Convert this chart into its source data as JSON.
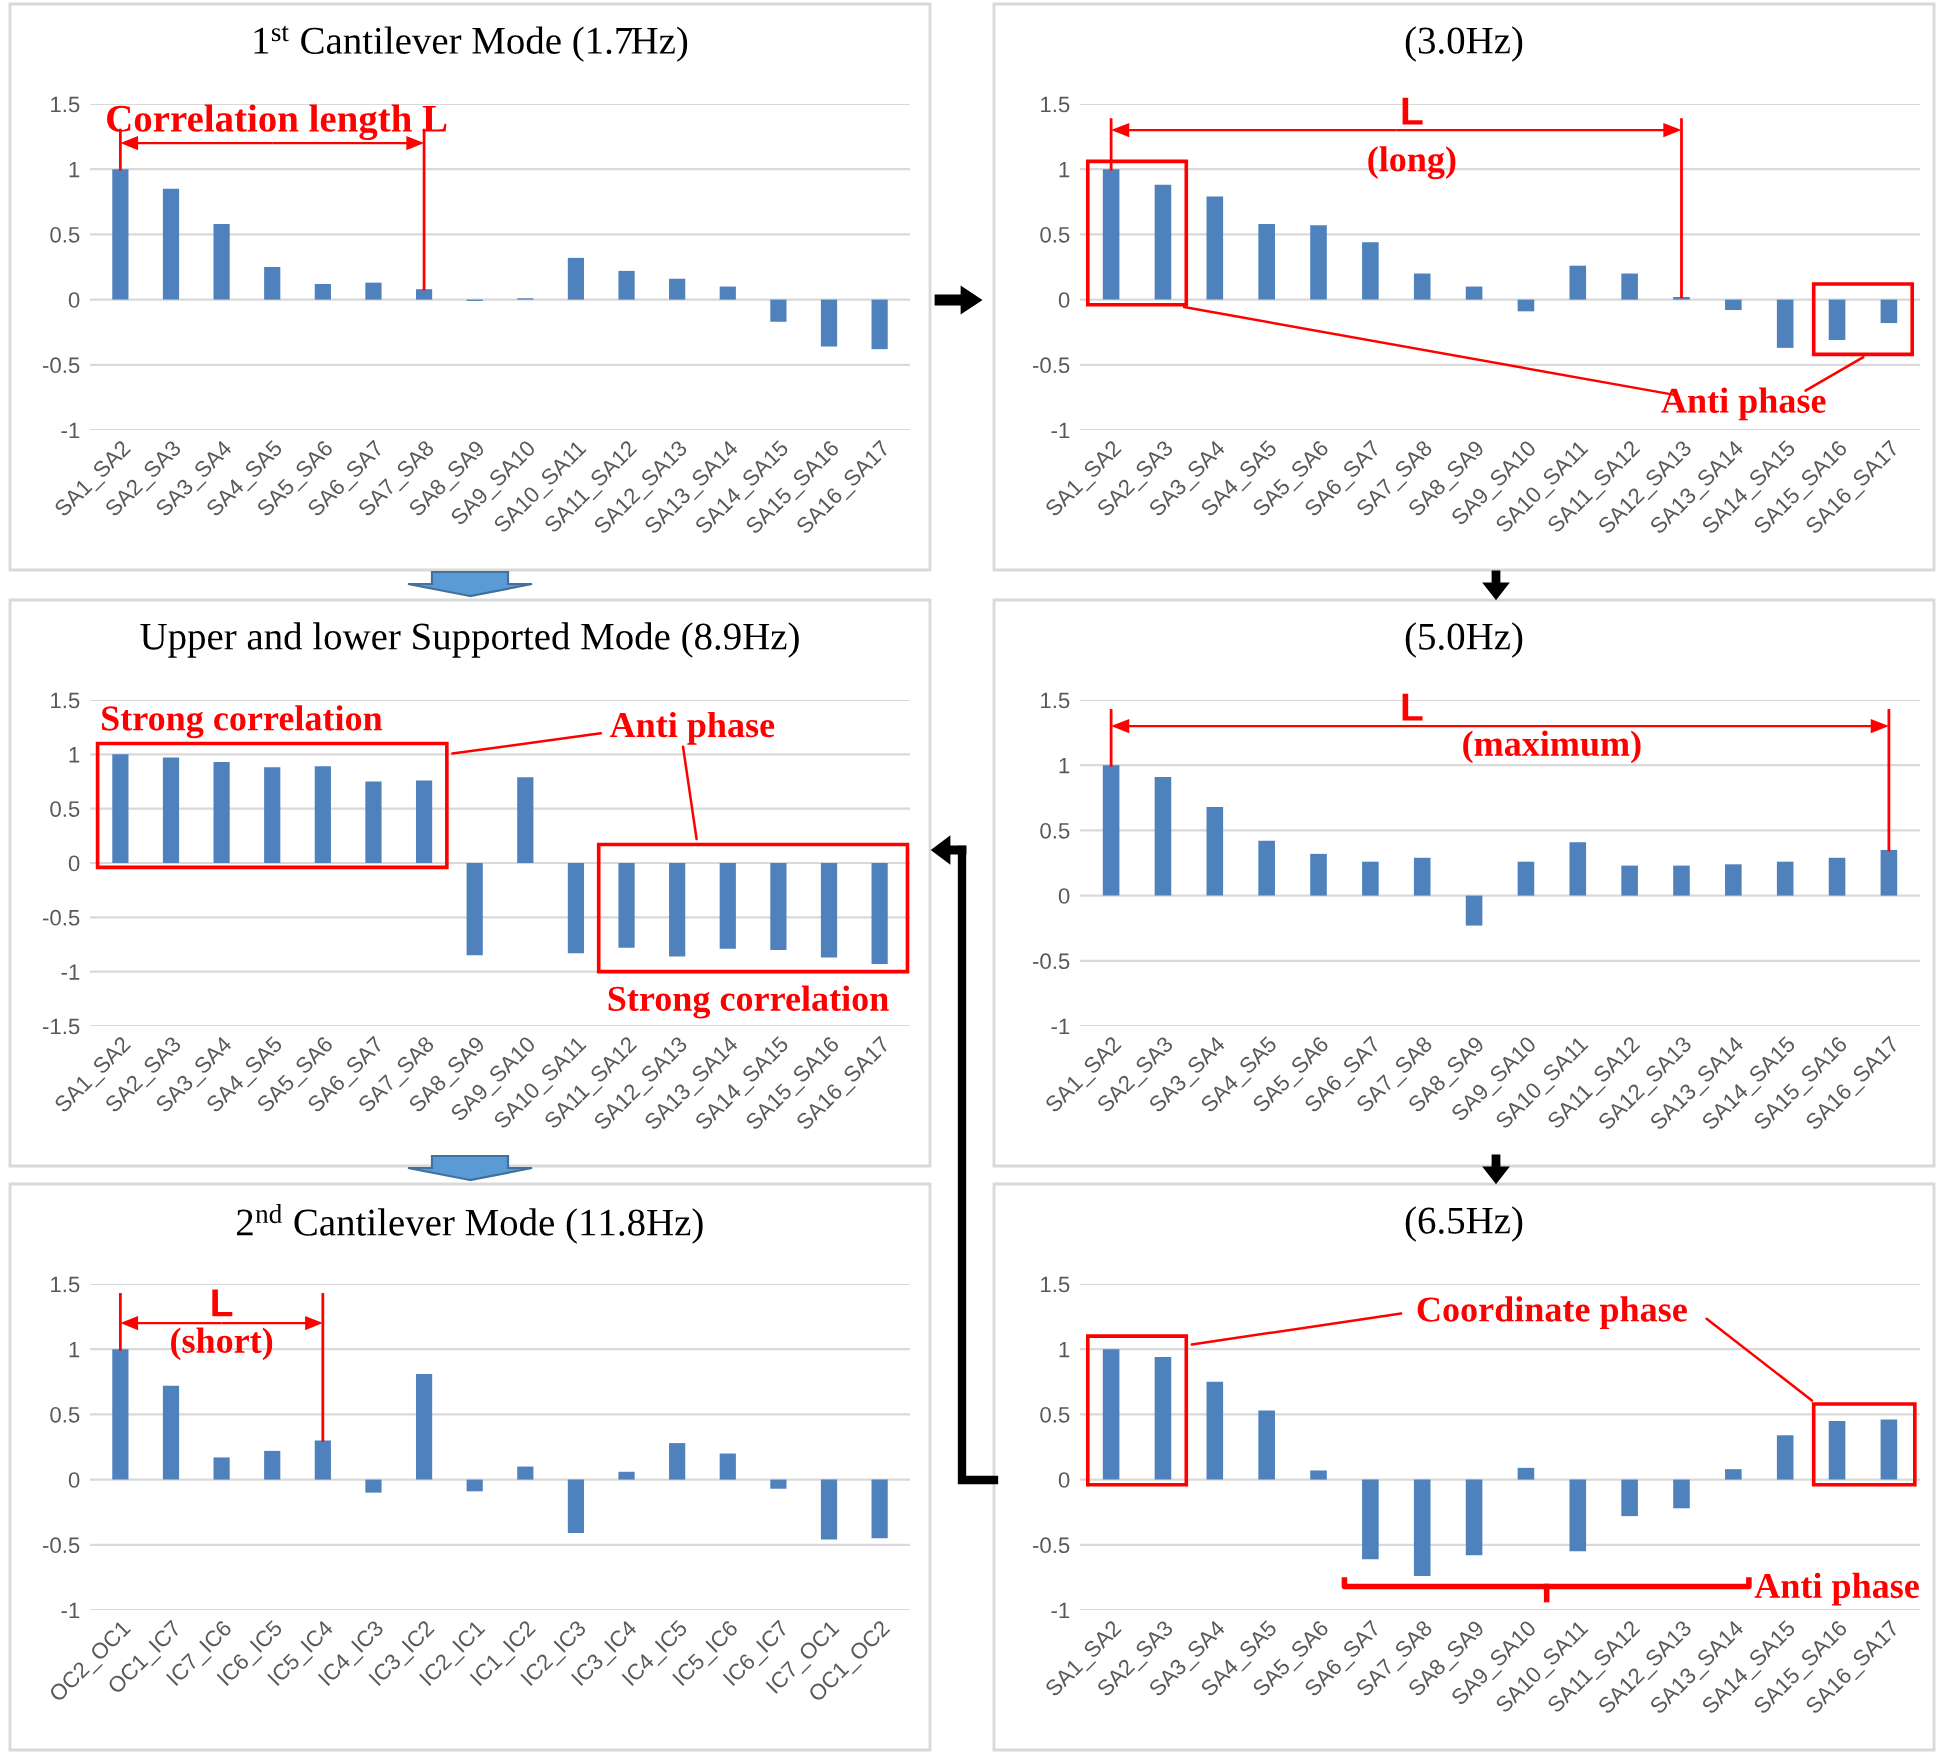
{
  "chart_data": [
    {
      "type": "bar",
      "title": "1$^{st}$ Cantilever Mode (1.7Hz)",
      "categories": [
        "SA1_SA2",
        "SA2_SA3",
        "SA3_SA4",
        "SA4_SA5",
        "SA5_SA6",
        "SA6_SA7",
        "SA7_SA8",
        "SA8_SA9",
        "SA9_SA10",
        "SA10_SA11",
        "SA11_SA12",
        "SA12_SA13",
        "SA13_SA14",
        "SA14_SA15",
        "SA15_SA16",
        "SA16_SA17"
      ],
      "values": [
        1.0,
        0.85,
        0.58,
        0.25,
        0.12,
        0.13,
        0.08,
        -0.01,
        0.01,
        0.32,
        0.22,
        0.16,
        0.1,
        -0.17,
        -0.36,
        -0.38
      ],
      "color": "#4f81bd",
      "ylim": [
        -1,
        1.5
      ],
      "yticks": [
        -1,
        -0.5,
        0,
        0.5,
        1,
        1.5
      ],
      "grid": "y",
      "annotations": [
        {
          "text": "Correlation length L",
          "x": "SA7_SA8",
          "y": 0.08
        }
      ]
    },
    {
      "type": "bar",
      "title": "(3.0Hz)",
      "categories": [
        "SA1_SA2",
        "SA2_SA3",
        "SA3_SA4",
        "SA4_SA5",
        "SA5_SA6",
        "SA6_SA7",
        "SA7_SA8",
        "SA8_SA9",
        "SA9_SA10",
        "SA10_SA11",
        "SA11_SA12",
        "SA12_SA13",
        "SA13_SA14",
        "SA14_SA15",
        "SA15_SA16",
        "SA16_SA17"
      ],
      "values": [
        1.0,
        0.88,
        0.79,
        0.58,
        0.57,
        0.44,
        0.2,
        0.1,
        -0.09,
        0.26,
        0.2,
        0.02,
        -0.08,
        -0.37,
        -0.31,
        -0.18
      ],
      "color": "#4f81bd",
      "ylim": [
        -1,
        1.5
      ],
      "yticks": [
        -1,
        -0.5,
        0,
        0.5,
        1,
        1.5
      ],
      "grid": "y",
      "annotations": [
        "L",
        "(long)",
        "Anti phase"
      ]
    },
    {
      "type": "bar",
      "title": "Upper and lower Supported Mode (8.9Hz)",
      "categories": [
        "SA1_SA2",
        "SA2_SA3",
        "SA3_SA4",
        "SA4_SA5",
        "SA5_SA6",
        "SA6_SA7",
        "SA7_SA8",
        "SA8_SA9",
        "SA9_SA10",
        "SA10_SA11",
        "SA11_SA12",
        "SA12_SA13",
        "SA13_SA14",
        "SA14_SA15",
        "SA15_SA16",
        "SA16_SA17"
      ],
      "values": [
        1.0,
        0.97,
        0.93,
        0.88,
        0.89,
        0.75,
        0.76,
        -0.85,
        0.79,
        -0.83,
        -0.78,
        -0.86,
        -0.79,
        -0.8,
        -0.87,
        -0.93
      ],
      "color": "#4f81bd",
      "ylim": [
        -1.5,
        1.5
      ],
      "yticks": [
        -1.5,
        -1,
        -0.5,
        0,
        0.5,
        1,
        1.5
      ],
      "grid": "y",
      "annotations": [
        "Strong correlation",
        "Anti phase",
        "Strong correlation"
      ]
    },
    {
      "type": "bar",
      "title": "(5.0Hz)",
      "categories": [
        "SA1_SA2",
        "SA2_SA3",
        "SA3_SA4",
        "SA4_SA5",
        "SA5_SA6",
        "SA6_SA7",
        "SA7_SA8",
        "SA8_SA9",
        "SA9_SA10",
        "SA10_SA11",
        "SA11_SA12",
        "SA12_SA13",
        "SA13_SA14",
        "SA14_SA15",
        "SA15_SA16",
        "SA16_SA17"
      ],
      "values": [
        1.0,
        0.91,
        0.68,
        0.42,
        0.32,
        0.26,
        0.29,
        -0.23,
        0.26,
        0.41,
        0.23,
        0.23,
        0.24,
        0.26,
        0.29,
        0.35
      ],
      "color": "#4f81bd",
      "ylim": [
        -1,
        1.5
      ],
      "yticks": [
        -1,
        -0.5,
        0,
        0.5,
        1,
        1.5
      ],
      "grid": "y",
      "annotations": [
        "L",
        "(maximum)"
      ]
    },
    {
      "type": "bar",
      "title": "2$^{nd}$ Cantilever Mode (11.8Hz)",
      "categories": [
        "OC2_OC1",
        "OC1_IC7",
        "IC7_IC6",
        "IC6_IC5",
        "IC5_IC4",
        "IC4_IC3",
        "IC3_IC2",
        "IC2_IC1",
        "IC1_IC2",
        "IC2_IC3",
        "IC3_IC4",
        "IC4_IC5",
        "IC5_IC6",
        "IC6_IC7",
        "IC7_OC1",
        "OC1_OC2"
      ],
      "values": [
        1.0,
        0.72,
        0.17,
        0.22,
        0.3,
        -0.1,
        0.81,
        -0.09,
        0.1,
        -0.41,
        0.06,
        0.28,
        0.2,
        -0.07,
        -0.46,
        -0.45
      ],
      "color": "#4f81bd",
      "ylim": [
        -1,
        1.5
      ],
      "yticks": [
        -1,
        -0.5,
        0,
        0.5,
        1,
        1.5
      ],
      "grid": "y",
      "annotations": [
        "L",
        "(short)"
      ]
    },
    {
      "type": "bar",
      "title": "(6.5Hz)",
      "categories": [
        "SA1_SA2",
        "SA2_SA3",
        "SA3_SA4",
        "SA4_SA5",
        "SA5_SA6",
        "SA6_SA7",
        "SA7_SA8",
        "SA8_SA9",
        "SA9_SA10",
        "SA10_SA11",
        "SA11_SA12",
        "SA12_SA13",
        "SA13_SA14",
        "SA14_SA15",
        "SA15_SA16",
        "SA16_SA17"
      ],
      "values": [
        1.0,
        0.94,
        0.75,
        0.53,
        0.07,
        -0.61,
        -0.74,
        -0.58,
        0.09,
        -0.55,
        -0.28,
        -0.22,
        0.08,
        0.34,
        0.45,
        0.46
      ],
      "color": "#4f81bd",
      "ylim": [
        -1,
        1.5
      ],
      "yticks": [
        -1,
        -0.5,
        0,
        0.5,
        1,
        1.5
      ],
      "grid": "y",
      "annotations": [
        "Coordinate phase",
        "Anti phase"
      ]
    }
  ]
}
